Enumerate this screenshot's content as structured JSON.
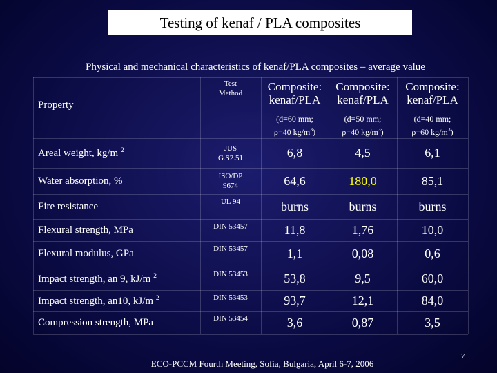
{
  "header": {
    "title": "Testing of kenaf / PLA composites",
    "subtitle": "Physical and mechanical characteristics of kenaf/PLA composites – average value"
  },
  "table": {
    "columns": {
      "property": "Property",
      "method": [
        "Test",
        "Method"
      ],
      "composites": [
        {
          "name": [
            "Composite:",
            "kenaf/PLA"
          ],
          "spec": [
            "(d=60 mm;",
            "ρ=40 kg/m",
            "3",
            ")"
          ]
        },
        {
          "name": [
            "Composite:",
            "kenaf/PLA"
          ],
          "spec": [
            "(d=50 mm;",
            "ρ=40 kg/m",
            "3",
            ")"
          ]
        },
        {
          "name": [
            "Composite:",
            "kenaf/PLA"
          ],
          "spec": [
            "(d=40 mm;",
            "ρ=60 kg/m",
            "3",
            ")"
          ]
        }
      ]
    },
    "highlight_color": "#ffff00",
    "rows": [
      {
        "property": "Areal weight, kg/m",
        "sup": "2",
        "method": [
          "JUS",
          "G.S2.51"
        ],
        "values": [
          "6,8",
          "4,5",
          "6,1"
        ]
      },
      {
        "property": "Water absorption, %",
        "method": [
          "ISO/DP",
          "9674"
        ],
        "values": [
          "64,6",
          "180,0",
          "85,1"
        ],
        "highlight": 1
      },
      {
        "property": "Fire resistance",
        "method": [
          "UL 94"
        ],
        "values": [
          "burns",
          "burns",
          "burns"
        ]
      },
      {
        "property": "Flexural strength, MPa",
        "method": [
          "DIN 53457"
        ],
        "values": [
          "11,8",
          "1,76",
          "10,0"
        ]
      },
      {
        "property": "Flexural modulus, GPa",
        "method": [
          "DIN 53457"
        ],
        "values": [
          "1,1",
          "0,08",
          "0,6"
        ]
      },
      {
        "property": "Impact strength, an 9, kJ/m",
        "sup": "2",
        "method": [
          "DIN 53453"
        ],
        "values": [
          "53,8",
          "9,5",
          "60,0"
        ]
      },
      {
        "property": "Impact strength, an10, kJ/m",
        "sup": "2",
        "method": [
          "DIN 53453"
        ],
        "values": [
          "93,7",
          "12,1",
          "84,0"
        ]
      },
      {
        "property": "Compression strength, MPa",
        "method": [
          "DIN 53454"
        ],
        "values": [
          "3,6",
          "0,87",
          "3,5"
        ]
      }
    ]
  },
  "footer": {
    "text": "ECO-PCCM Fourth Meeting, Sofia, Bulgaria, April 6-7, 2006",
    "page": "7"
  }
}
